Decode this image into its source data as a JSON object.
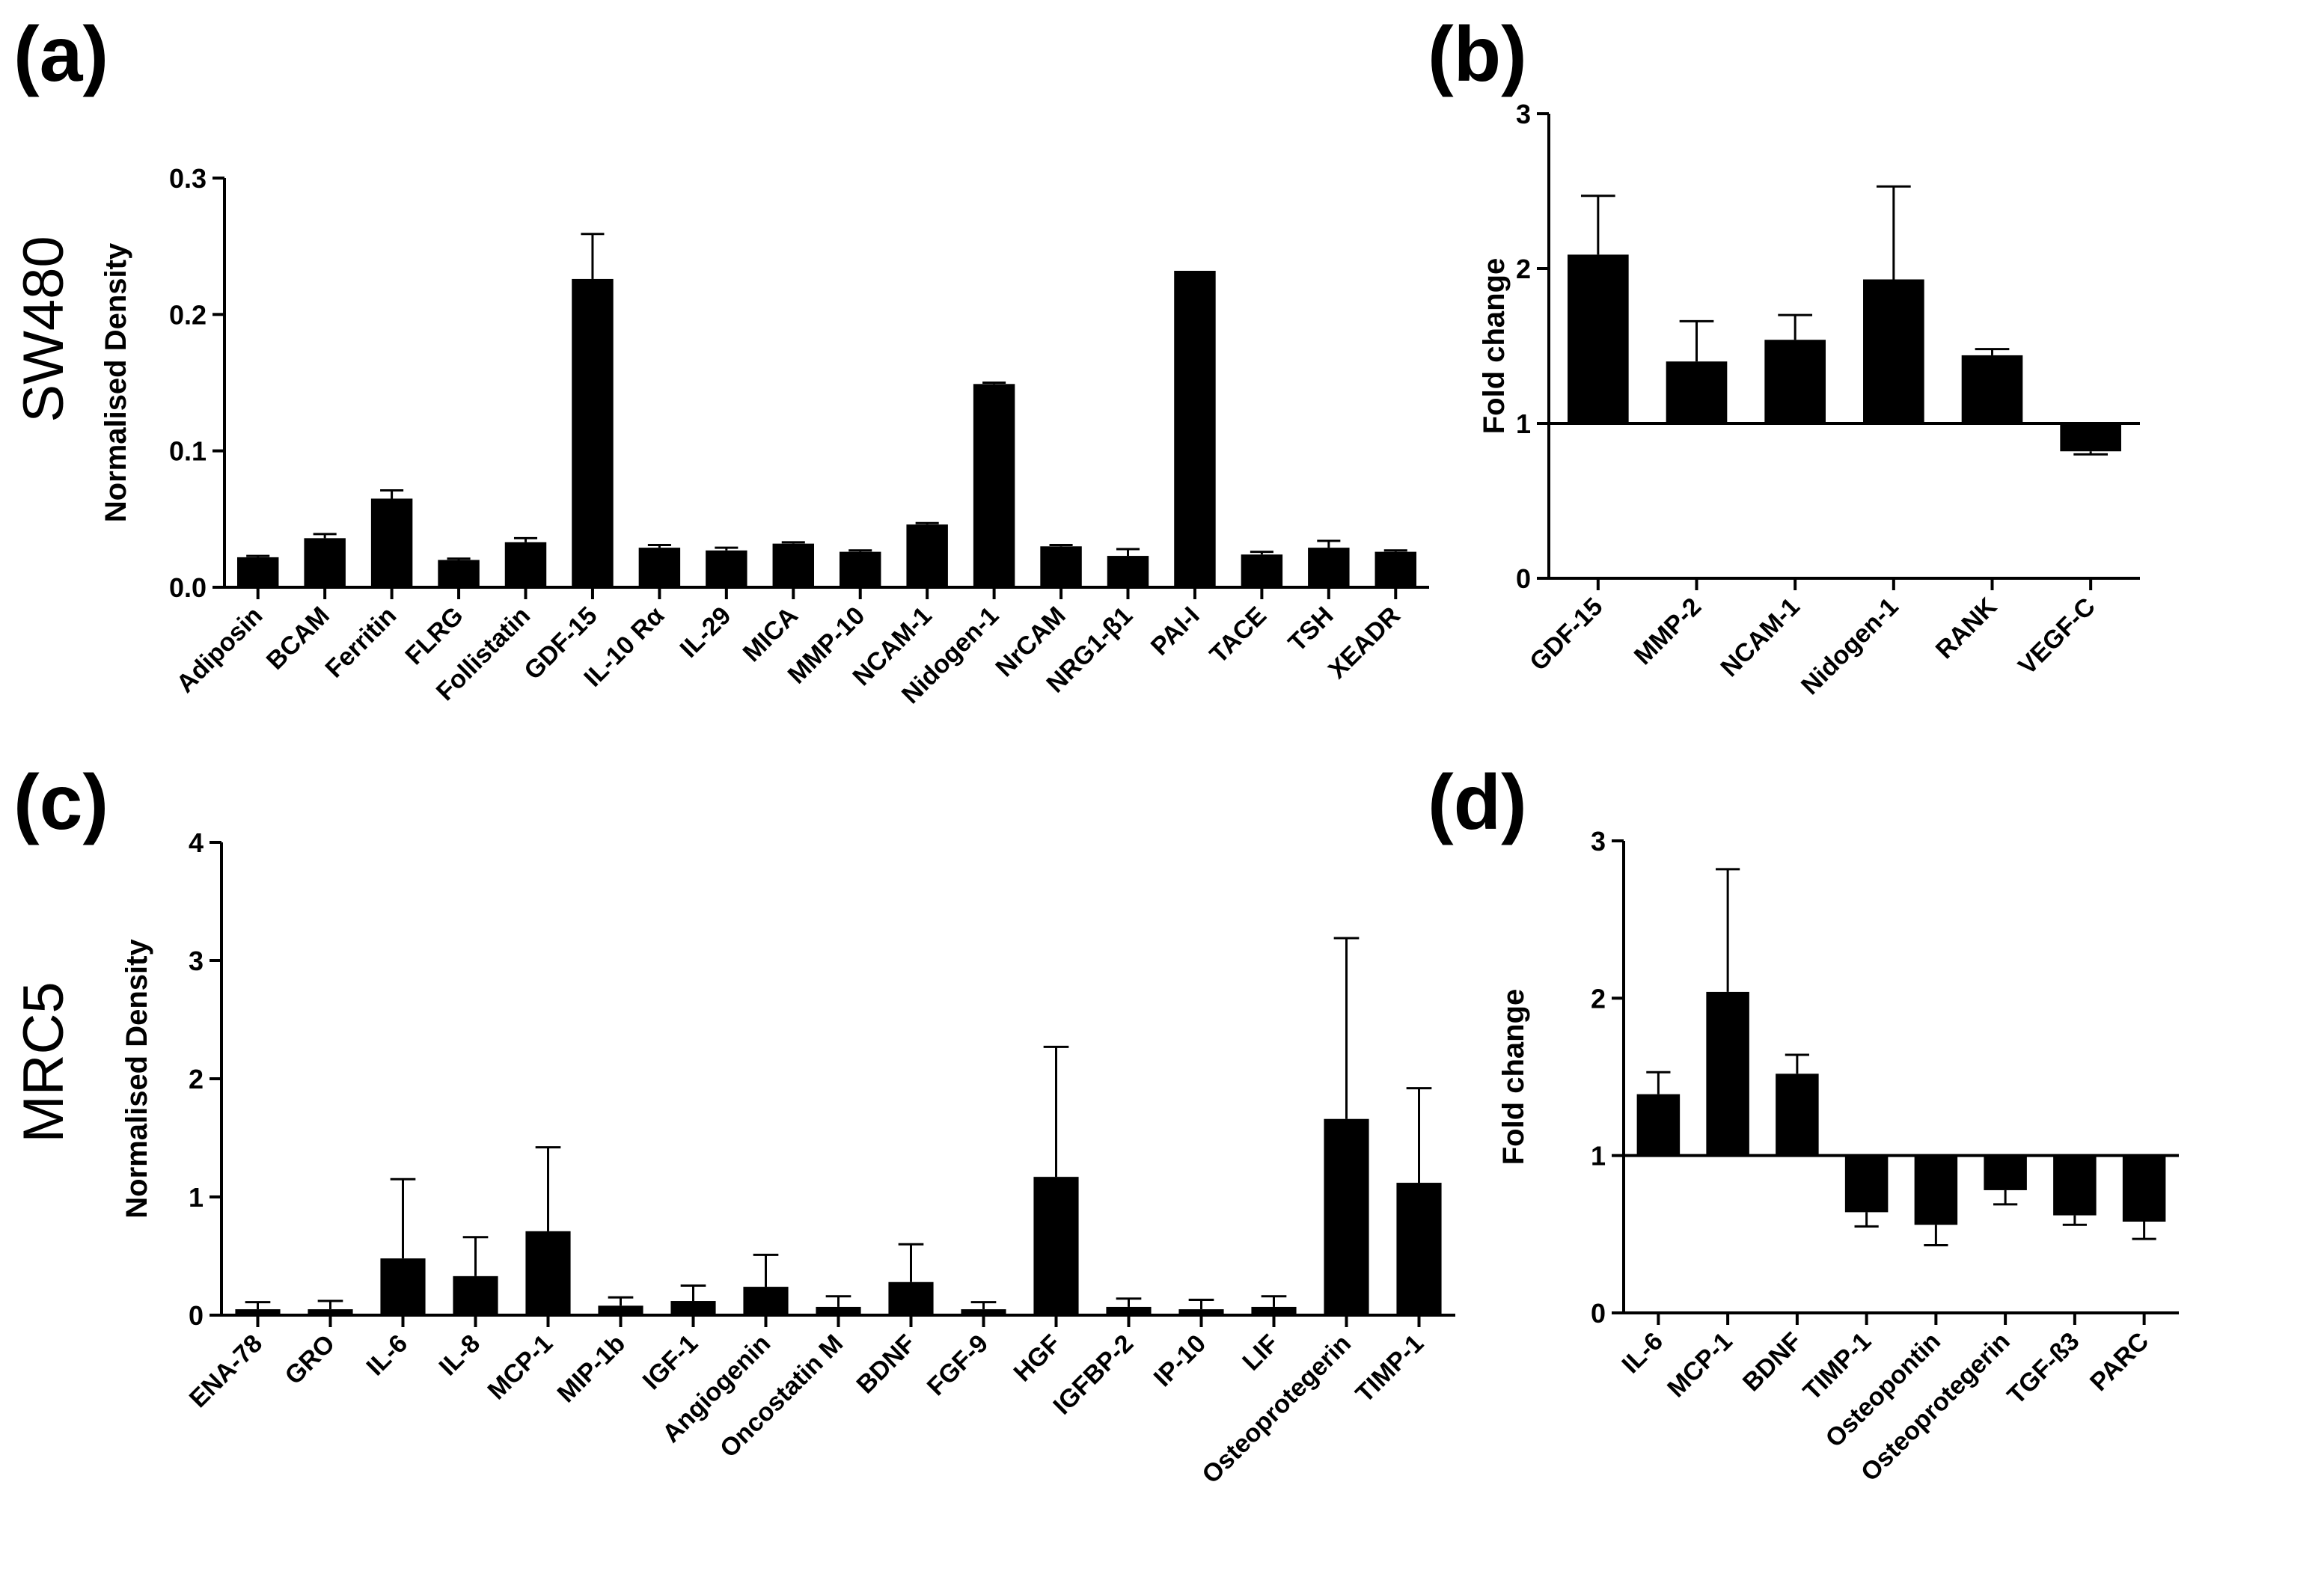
{
  "row_labels": [
    "SW480",
    "MRC5"
  ],
  "chart_data": [
    {
      "id": "a",
      "panel_label": "(a)",
      "type": "bar",
      "ylabel": "Normalised Density",
      "ylim": [
        0,
        0.3
      ],
      "yticks": [
        0.0,
        0.1,
        0.2,
        0.3
      ],
      "ytick_labels": [
        "0.0",
        "0.1",
        "0.2",
        "0.3"
      ],
      "baseline": 0,
      "categories": [
        "Adiposin",
        "BCAM",
        "Ferritin",
        "FLRG",
        "Follistatin",
        "GDF-15",
        "IL-10 Rα",
        "IL-29",
        "MICA",
        "MMP-10",
        "NCAM-1",
        "Nidogen-1",
        "NrCAM",
        "NRG1-β1",
        "PAI-I",
        "TACE",
        "TSH",
        "XEADR"
      ],
      "values": [
        0.022,
        0.036,
        0.065,
        0.02,
        0.033,
        0.226,
        0.029,
        0.027,
        0.032,
        0.026,
        0.046,
        0.149,
        0.03,
        0.023,
        0.232,
        0.024,
        0.029,
        0.026
      ],
      "error": [
        0.001,
        0.003,
        0.006,
        0.001,
        0.003,
        0.033,
        0.002,
        0.002,
        0.001,
        0.001,
        0.001,
        0.001,
        0.001,
        0.005,
        0.0,
        0.002,
        0.005,
        0.001
      ]
    },
    {
      "id": "b",
      "panel_label": "(b)",
      "type": "bar",
      "ylabel": "Fold change",
      "ylim": [
        0,
        3
      ],
      "yticks": [
        0,
        1,
        2,
        3
      ],
      "ytick_labels": [
        "0",
        "1",
        "2",
        "3"
      ],
      "baseline": 1,
      "categories": [
        "GDF-15",
        "MMP-2",
        "NCAM-1",
        "Nidogen-1",
        "RANK",
        "VEGF-C"
      ],
      "values": [
        2.09,
        1.4,
        1.54,
        1.93,
        1.44,
        0.82
      ],
      "error": [
        0.38,
        0.26,
        0.16,
        0.6,
        0.04,
        0.02
      ]
    },
    {
      "id": "c",
      "panel_label": "(c)",
      "type": "bar",
      "ylabel": "Normalised Density",
      "ylim": [
        0,
        4
      ],
      "yticks": [
        0,
        1,
        2,
        3,
        4
      ],
      "ytick_labels": [
        "0",
        "1",
        "2",
        "3",
        "4"
      ],
      "baseline": 0,
      "categories": [
        "ENA-78",
        "GRO",
        "IL-6",
        "IL-8",
        "MCP-1",
        "MIP-1b",
        "IGF-1",
        "Angiogenin",
        "Oncostatin M",
        "BDNF",
        "FGF-9",
        "HGF",
        "IGFBP-2",
        "IP-10",
        "LIF",
        "Osteoprotegerin",
        "TIMP-1"
      ],
      "values": [
        0.05,
        0.05,
        0.48,
        0.33,
        0.71,
        0.08,
        0.12,
        0.24,
        0.07,
        0.28,
        0.05,
        1.17,
        0.07,
        0.05,
        0.07,
        1.66,
        1.12
      ],
      "error": [
        0.06,
        0.07,
        0.67,
        0.33,
        0.71,
        0.07,
        0.13,
        0.27,
        0.09,
        0.32,
        0.06,
        1.1,
        0.07,
        0.08,
        0.09,
        1.53,
        0.8
      ]
    },
    {
      "id": "d",
      "panel_label": "(d)",
      "type": "bar",
      "ylabel": "Fold change",
      "ylim": [
        0,
        3
      ],
      "yticks": [
        0,
        1,
        2,
        3
      ],
      "ytick_labels": [
        "0",
        "1",
        "2",
        "3"
      ],
      "baseline": 1,
      "categories": [
        "IL-6",
        "MCP-1",
        "BDNF",
        "TIMP-1",
        "Osteopontin",
        "Osteoprotegerin",
        "TGF-ß3",
        "PARC"
      ],
      "values": [
        1.39,
        2.04,
        1.52,
        0.64,
        0.56,
        0.78,
        0.62,
        0.58
      ],
      "error": [
        0.14,
        0.78,
        0.12,
        0.09,
        0.13,
        0.09,
        0.06,
        0.11
      ]
    }
  ]
}
